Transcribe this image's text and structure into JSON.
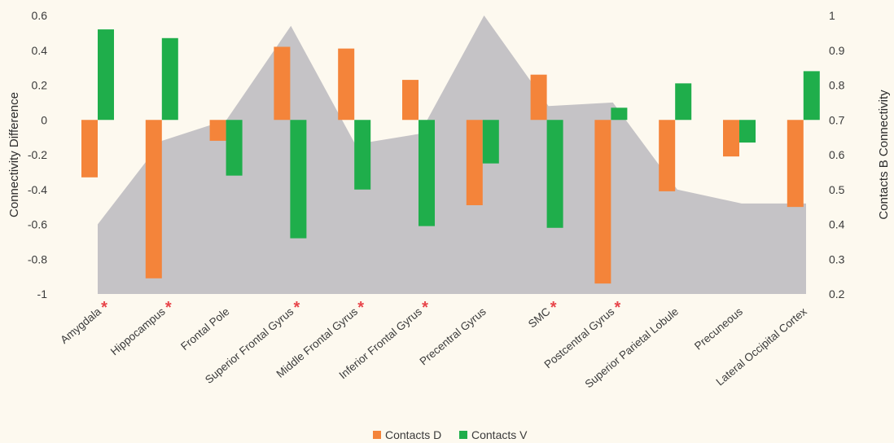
{
  "chart_data": {
    "type": "bar",
    "categories": [
      "Amygdala",
      "Hippocampus",
      "Frontal Pole",
      "Superior Frontal Gyrus",
      "Middle Frontal Gyrus",
      "Inferior Frontal Gyrus",
      "Precentral Gyrus",
      "SMC",
      "Postcentral Gyrus",
      "Superior Parietal Lobule",
      "Precuneous",
      "Lateral Occipital Cortex"
    ],
    "series": [
      {
        "name": "Contacts D",
        "axis": "left",
        "color": "#f4843a",
        "values": [
          -0.33,
          -0.91,
          -0.12,
          0.42,
          0.41,
          0.23,
          -0.49,
          0.26,
          -0.94,
          -0.41,
          -0.21,
          -0.5
        ]
      },
      {
        "name": "Contacts V",
        "axis": "left",
        "color": "#1fae4b",
        "values": [
          0.52,
          0.47,
          -0.32,
          -0.68,
          -0.4,
          -0.61,
          -0.25,
          -0.62,
          0.07,
          0.21,
          -0.13,
          0.28
        ]
      },
      {
        "name": "",
        "type": "area",
        "axis": "right",
        "color": "#c5c3c6",
        "values": [
          0.4,
          0.64,
          0.7,
          0.97,
          0.63,
          0.66,
          1.0,
          0.74,
          0.75,
          0.5,
          0.46,
          0.46
        ]
      }
    ],
    "significant": [
      true,
      true,
      false,
      true,
      true,
      true,
      false,
      true,
      true,
      false,
      false,
      false
    ],
    "significance_marker": "*",
    "ylabel": "Connectivity Difference",
    "y2label": "Contacts B Connectivity",
    "ylim": [
      -1,
      0.6
    ],
    "y2lim": [
      0.2,
      1
    ],
    "yticks": [
      "0.6",
      "0.4",
      "0.2",
      "0",
      "-0.2",
      "-0.4",
      "-0.6",
      "-0.8",
      "-1"
    ],
    "y2ticks": [
      "1",
      "0.9",
      "0.8",
      "0.7",
      "0.6",
      "0.5",
      "0.4",
      "0.3",
      "0.2"
    ],
    "legend": [
      {
        "label": "Contacts D",
        "color": "#f4843a"
      },
      {
        "label": "Contacts V",
        "color": "#1fae4b"
      }
    ],
    "legend_position": "bottom-center",
    "grid": false
  }
}
